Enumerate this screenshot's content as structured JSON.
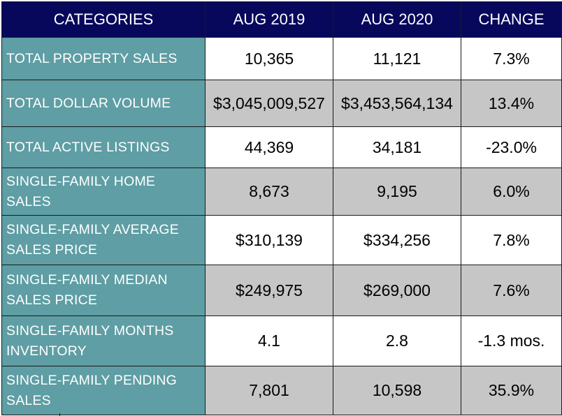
{
  "header": {
    "categories": "CATEGORIES",
    "col1": "AUG 2019",
    "col2": "AUG 2020",
    "col3": "CHANGE"
  },
  "rows": [
    {
      "category": "TOTAL PROPERTY SALES",
      "aug2019": "10,365",
      "aug2020": "11,121",
      "change": "7.3%"
    },
    {
      "category": "TOTAL DOLLAR VOLUME",
      "aug2019": "$3,045,009,527",
      "aug2020": "$3,453,564,134",
      "change": "13.4%"
    },
    {
      "category": "TOTAL ACTIVE LISTINGS",
      "aug2019": "44,369",
      "aug2020": "34,181",
      "change": "-23.0%"
    },
    {
      "category": "SINGLE-FAMILY HOME SALES",
      "aug2019": "8,673",
      "aug2020": "9,195",
      "change": "6.0%"
    },
    {
      "category": "SINGLE-FAMILY AVERAGE SALES PRICE",
      "aug2019": "$310,139",
      "aug2020": "$334,256",
      "change": "7.8%"
    },
    {
      "category": "SINGLE-FAMILY MEDIAN SALES PRICE",
      "aug2019": "$249,975",
      "aug2020": "$269,000",
      "change": "7.6%"
    },
    {
      "category": "SINGLE-FAMILY MONTHS INVENTORY",
      "aug2019": "4.1",
      "aug2020": "2.8",
      "change": "-1.3 mos."
    },
    {
      "category": "SINGLE-FAMILY PENDING SALES",
      "aug2019": "7,801",
      "aug2020": "10,598",
      "change": "35.9%"
    }
  ],
  "colors": {
    "header_bg": "#07085c",
    "category_bg": "#5e9ea4",
    "shaded_row_bg": "#c6c6c6",
    "white_row_bg": "#ffffff"
  }
}
